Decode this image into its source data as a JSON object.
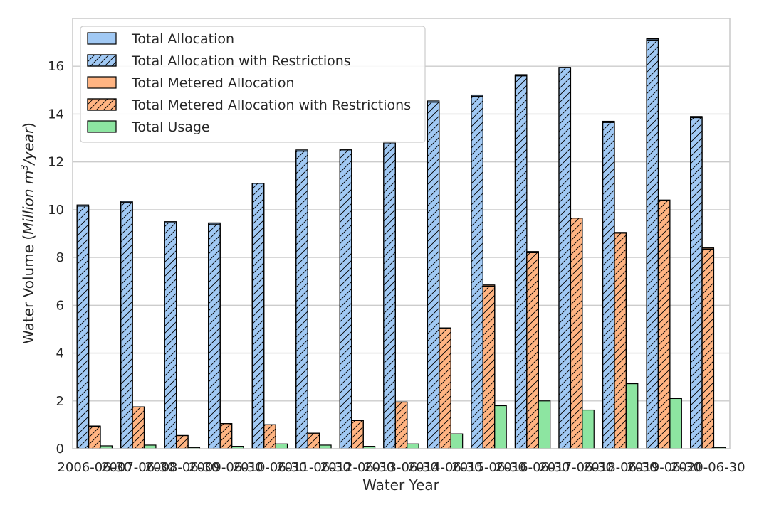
{
  "chart_data": {
    "type": "bar",
    "xlabel": "Water Year",
    "ylabel_prefix": "Water Volume (",
    "ylabel_italic": "Million m",
    "ylabel_sup": "3",
    "ylabel_italic2": "/year",
    "ylabel_suffix": ")",
    "ylim": [
      0,
      18
    ],
    "yticks": [
      0,
      2,
      4,
      6,
      8,
      10,
      12,
      14,
      16
    ],
    "grid": true,
    "legend_position": "top-left",
    "categories": [
      "2006-06-30",
      "2007-06-30",
      "2008-06-30",
      "2009-06-30",
      "2010-06-30",
      "2011-06-30",
      "2012-06-30",
      "2013-06-30",
      "2014-06-30",
      "2015-06-30",
      "2016-06-30",
      "2017-06-30",
      "2018-06-30",
      "2019-06-30",
      "2020-06-30"
    ],
    "series": [
      {
        "name": "Total Allocation",
        "color": "#a1c9f4",
        "hatch": false,
        "values": [
          10.2,
          10.35,
          9.5,
          9.45,
          11.1,
          12.5,
          12.5,
          12.85,
          14.55,
          14.8,
          15.65,
          15.95,
          13.7,
          17.15,
          13.9
        ]
      },
      {
        "name": "Total Allocation with Restrictions",
        "color": "#a1c9f4",
        "hatch": true,
        "values": [
          10.15,
          10.3,
          9.45,
          9.4,
          11.1,
          12.45,
          12.5,
          12.8,
          14.5,
          14.75,
          15.6,
          15.95,
          13.65,
          17.1,
          13.85
        ]
      },
      {
        "name": "Total Metered Allocation",
        "color": "#ffb482",
        "hatch": false,
        "values": [
          0.95,
          1.75,
          0.55,
          1.05,
          1.0,
          0.65,
          1.2,
          1.95,
          5.05,
          6.85,
          8.25,
          9.65,
          9.05,
          10.4,
          8.4
        ]
      },
      {
        "name": "Total Metered Allocation with Restrictions",
        "color": "#ffb482",
        "hatch": true,
        "values": [
          0.93,
          1.75,
          0.55,
          1.05,
          1.0,
          0.65,
          1.18,
          1.95,
          5.05,
          6.8,
          8.2,
          9.65,
          9.02,
          10.4,
          8.35
        ]
      },
      {
        "name": "Total Usage",
        "color": "#8de5a1",
        "hatch": false,
        "values": [
          0.12,
          0.15,
          0.05,
          0.1,
          0.2,
          0.15,
          0.1,
          0.2,
          0.62,
          1.8,
          2.0,
          1.62,
          2.72,
          2.1,
          0.05
        ]
      }
    ]
  }
}
